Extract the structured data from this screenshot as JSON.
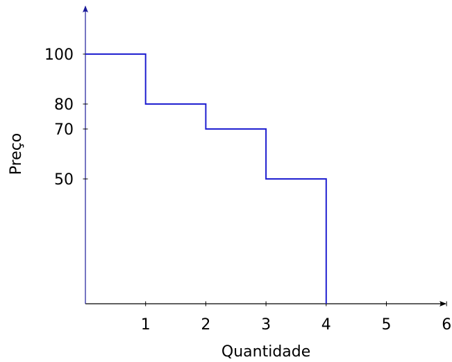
{
  "chart_data": {
    "type": "line",
    "step": true,
    "xlabel": "Quantidade",
    "ylabel": "Preço",
    "xlim": [
      0,
      6
    ],
    "ylim": [
      0,
      120
    ],
    "x_ticks": [
      1,
      2,
      3,
      4,
      5,
      6
    ],
    "y_ticks": [
      50,
      70,
      80,
      100
    ],
    "grid": false,
    "legend": "none",
    "series": [
      {
        "color": "#1f1fd0",
        "points": [
          {
            "x": 0,
            "y": 100
          },
          {
            "x": 1,
            "y": 100
          },
          {
            "x": 1,
            "y": 80
          },
          {
            "x": 2,
            "y": 80
          },
          {
            "x": 2,
            "y": 70
          },
          {
            "x": 3,
            "y": 70
          },
          {
            "x": 3,
            "y": 50
          },
          {
            "x": 4,
            "y": 50
          },
          {
            "x": 4,
            "y": 0
          }
        ]
      }
    ],
    "axis_color": "#1a1a99",
    "axis_color_x": "#000000"
  }
}
